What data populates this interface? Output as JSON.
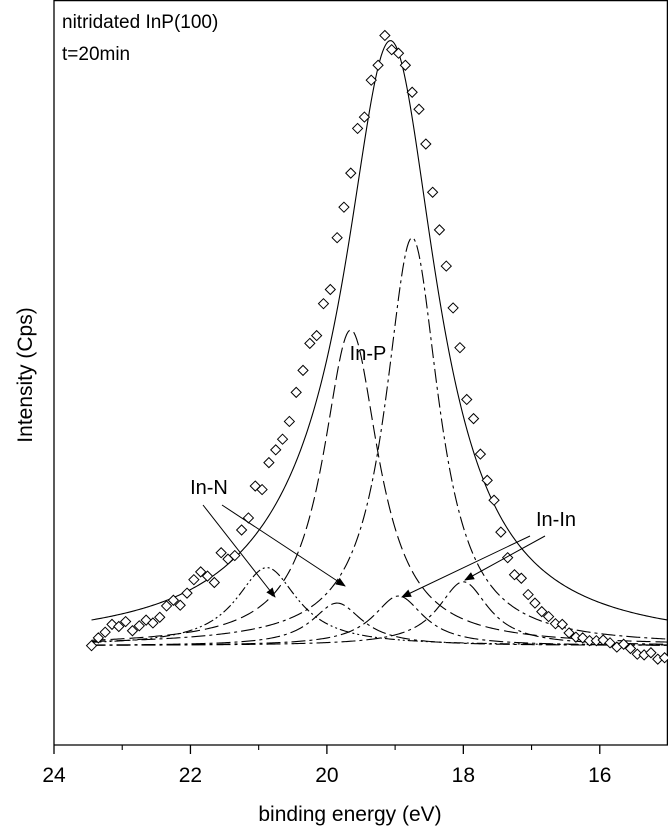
{
  "chart_data": {
    "type": "scatter",
    "title_lines": [
      "nitridated InP(100)",
      "t=20min"
    ],
    "xlabel": "binding energy (eV)",
    "ylabel": "Intensity (Cps)",
    "xlim": [
      24,
      15
    ],
    "x_reversed": true,
    "ylim": [
      0,
      1.05
    ],
    "grid": false,
    "x_ticks": [
      24,
      22,
      20,
      18,
      16
    ],
    "x_tick_labels": [
      "24",
      "22",
      "20",
      "18",
      "16"
    ],
    "y_ticks_labeled": false,
    "baseline": 0.14,
    "series": [
      {
        "style": "diamond-markers",
        "x": [
          23.45,
          23.35,
          23.25,
          23.15,
          23.05,
          22.95,
          22.85,
          22.75,
          22.65,
          22.55,
          22.45,
          22.35,
          22.25,
          22.15,
          22.05,
          21.95,
          21.85,
          21.75,
          21.65,
          21.55,
          21.45,
          21.35,
          21.25,
          21.15,
          21.05,
          20.95,
          20.85,
          20.75,
          20.65,
          20.55,
          20.45,
          20.35,
          20.25,
          20.15,
          20.05,
          19.95,
          19.85,
          19.75,
          19.65,
          19.55,
          19.45,
          19.35,
          19.25,
          19.15,
          19.05,
          18.95,
          18.85,
          18.75,
          18.65,
          18.55,
          18.45,
          18.35,
          18.25,
          18.15,
          18.05,
          17.95,
          17.85,
          17.75,
          17.65,
          17.55,
          17.45,
          17.35,
          17.25,
          17.15,
          17.05,
          16.95,
          16.85,
          16.75,
          16.65,
          16.55,
          16.45,
          16.35,
          16.25,
          16.15,
          16.05,
          15.95,
          15.85,
          15.75,
          15.65,
          15.55,
          15.45,
          15.35,
          15.25,
          15.15,
          15.05
        ],
        "y": [
          0.14,
          0.151,
          0.159,
          0.17,
          0.167,
          0.174,
          0.161,
          0.168,
          0.176,
          0.172,
          0.18,
          0.196,
          0.204,
          0.197,
          0.214,
          0.233,
          0.244,
          0.238,
          0.229,
          0.271,
          0.262,
          0.267,
          0.303,
          0.32,
          0.365,
          0.36,
          0.398,
          0.416,
          0.431,
          0.456,
          0.497,
          0.528,
          0.566,
          0.577,
          0.622,
          0.642,
          0.715,
          0.758,
          0.806,
          0.869,
          0.885,
          0.937,
          0.958,
          1.0,
          0.98,
          0.975,
          0.958,
          0.92,
          0.896,
          0.847,
          0.779,
          0.726,
          0.675,
          0.616,
          0.56,
          0.487,
          0.46,
          0.41,
          0.373,
          0.345,
          0.3,
          0.264,
          0.24,
          0.235,
          0.212,
          0.2,
          0.188,
          0.181,
          0.171,
          0.17,
          0.158,
          0.152,
          0.151,
          0.147,
          0.147,
          0.148,
          0.144,
          0.138,
          0.142,
          0.136,
          0.128,
          0.127,
          0.13,
          0.121,
          0.123
        ]
      },
      {
        "style": "solid",
        "peaks": [
          {
            "center": 19.06,
            "height": 0.82,
            "width": 0.82
          },
          {
            "center": 20.15,
            "height": 0.05,
            "width": 1.5
          }
        ],
        "x_range": [
          23.45,
          15.0
        ]
      },
      {
        "name": "In-N",
        "style": "dash-dot-dot",
        "peaks": [
          {
            "center": 20.88,
            "height": 0.11,
            "width": 0.55
          }
        ],
        "x_range": [
          23.45,
          15.0
        ]
      },
      {
        "name": "In-P",
        "style": "long-dash",
        "peaks": [
          {
            "center": 19.65,
            "height": 0.445,
            "width": 0.5
          }
        ],
        "x_range": [
          23.45,
          15.0
        ]
      },
      {
        "style": "dash-dot",
        "peaks": [
          {
            "center": 18.75,
            "height": 0.575,
            "width": 0.48
          }
        ],
        "x_range": [
          23.45,
          15.0
        ]
      },
      {
        "style": "dash-dot",
        "peaks": [
          {
            "center": 19.85,
            "height": 0.06,
            "width": 0.45
          }
        ],
        "x_range": [
          23.45,
          15.0
        ]
      },
      {
        "style": "dash-dot",
        "peaks": [
          {
            "center": 18.95,
            "height": 0.07,
            "width": 0.45
          }
        ],
        "x_range": [
          23.45,
          15.0
        ]
      },
      {
        "name": "In-In",
        "style": "dash-dot",
        "peaks": [
          {
            "center": 18.0,
            "height": 0.09,
            "width": 0.45
          }
        ],
        "x_range": [
          23.45,
          15.0
        ]
      }
    ],
    "annotations": [
      {
        "text": "In-P"
      },
      {
        "text": "In-N"
      },
      {
        "text": "In-In"
      }
    ]
  }
}
